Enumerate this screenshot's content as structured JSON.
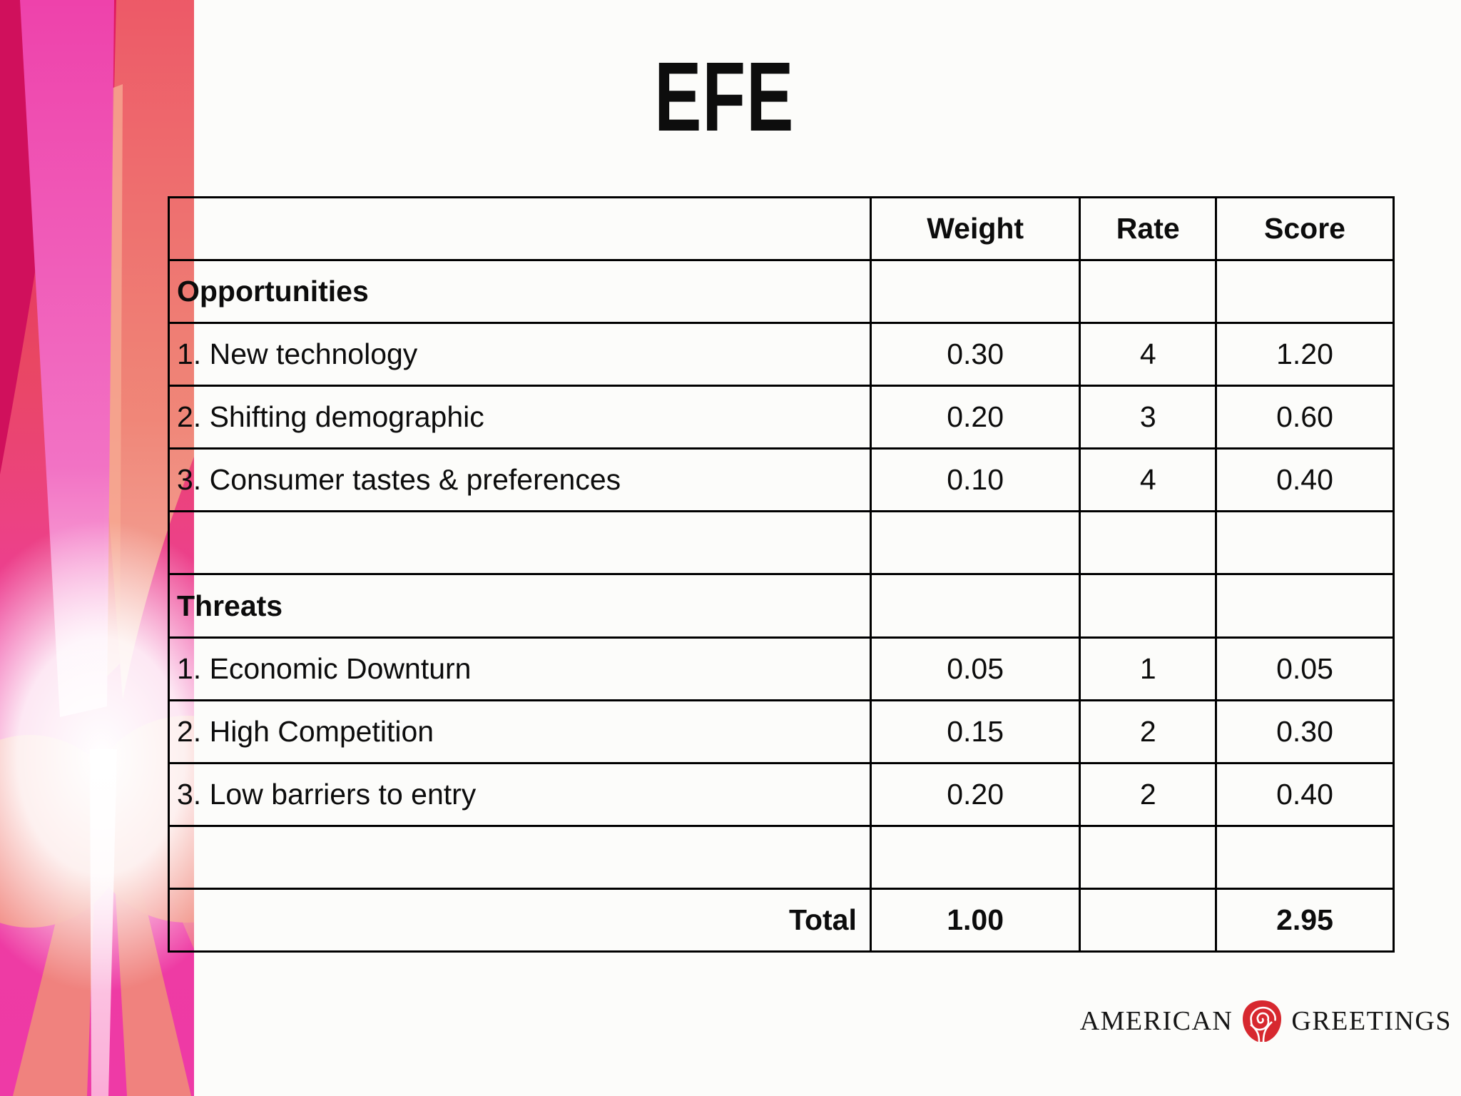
{
  "slide": {
    "title": "EFE"
  },
  "table": {
    "rows": [
      {
        "type": "header",
        "cells": [
          "",
          "Weight",
          "Rate",
          "Score"
        ]
      },
      {
        "type": "section",
        "cells": [
          "Opportunities",
          "",
          "",
          ""
        ]
      },
      {
        "type": "item",
        "cells": [
          "1. New technology",
          "0.30",
          "4",
          "1.20"
        ]
      },
      {
        "type": "item",
        "cells": [
          "2. Shifting demographic",
          "0.20",
          "3",
          "0.60"
        ]
      },
      {
        "type": "item",
        "cells": [
          "3. Consumer tastes & preferences",
          "0.10",
          "4",
          "0.40"
        ]
      },
      {
        "type": "empty",
        "cells": [
          "",
          "",
          "",
          ""
        ]
      },
      {
        "type": "section",
        "cells": [
          "Threats",
          "",
          "",
          ""
        ]
      },
      {
        "type": "item",
        "cells": [
          "1. Economic Downturn",
          "0.05",
          "1",
          "0.05"
        ]
      },
      {
        "type": "item",
        "cells": [
          "2. High Competition",
          "0.15",
          "2",
          "0.30"
        ]
      },
      {
        "type": "item",
        "cells": [
          "3. Low barriers to entry",
          "0.20",
          "2",
          "0.40"
        ]
      },
      {
        "type": "empty",
        "cells": [
          "",
          "",
          "",
          ""
        ]
      },
      {
        "type": "total",
        "cells": [
          "Total",
          "1.00",
          "",
          "2.95"
        ]
      }
    ]
  },
  "footer": {
    "brand_left": "AMERICAN",
    "brand_right": "GREETINGS",
    "rose_icon": "rose-icon"
  },
  "colors": {
    "border_black": "#000000",
    "rose_red": "#d7282f",
    "crimson_top": "#d0105c",
    "left_red": "#e8485f",
    "pink_ray": "#ee44ab",
    "magenta_bottom": "#ee3aa6",
    "salmon": "#f0897b",
    "glow_white": "#ffffff"
  }
}
